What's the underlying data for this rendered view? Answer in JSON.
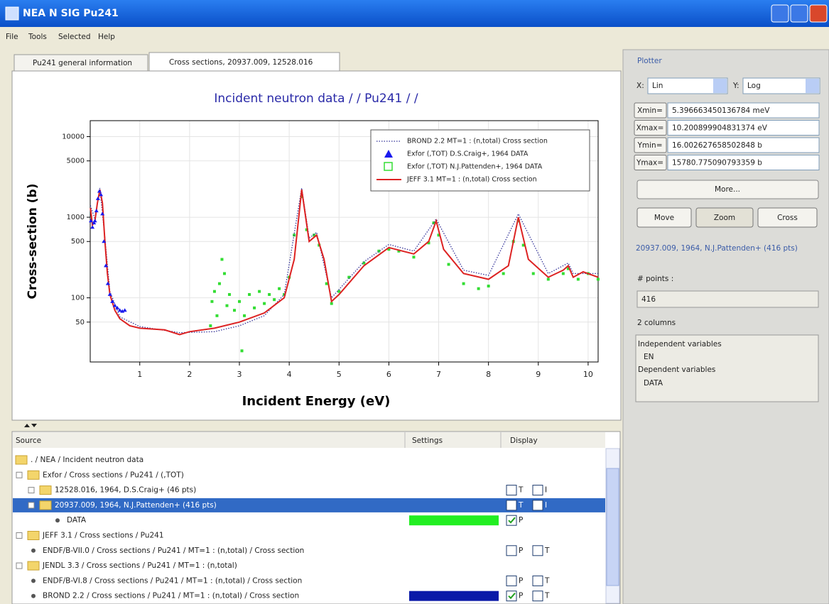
{
  "window": {
    "title": "NEA N SIG Pu241"
  },
  "menu": [
    "File",
    "Tools",
    "Selected",
    "Help"
  ],
  "tabs": [
    "Pu241 general information",
    "Cross sections, 20937.009, 12528.016"
  ],
  "chart_data": {
    "type": "line",
    "title": "Incident neutron data / / Pu241 / /",
    "x_label": "Incident Energy (eV)",
    "y_label": "Cross-section (b)",
    "xlim": [
      0.005396663450136784,
      10.200899904831374
    ],
    "ylim": [
      16.00262765850285,
      15780.775090793359
    ],
    "xticks": [
      1,
      2,
      3,
      4,
      5,
      6,
      7,
      8,
      9,
      10
    ],
    "yticks": [
      50,
      100,
      500,
      1000,
      5000,
      10000
    ],
    "log_y": true,
    "grid": true,
    "legend": "upper right",
    "series": [
      {
        "name": "BROND 2.2  MT=1 : (n,total) Cross section",
        "color": "#333399",
        "style": "dotted",
        "x": [
          0.01,
          0.1,
          0.2,
          0.3,
          0.4,
          0.6,
          1.0,
          1.8,
          2.5,
          3.0,
          3.5,
          3.9,
          4.25,
          4.4,
          4.55,
          4.85,
          5.5,
          6.0,
          6.5,
          6.95,
          7.5,
          8.0,
          8.6,
          9.2,
          9.6,
          9.7,
          10.2
        ],
        "values": [
          1400,
          950,
          2300,
          550,
          120,
          58,
          44,
          37,
          38,
          45,
          60,
          110,
          2300,
          550,
          650,
          100,
          280,
          460,
          380,
          950,
          220,
          190,
          1100,
          200,
          270,
          200,
          200
        ]
      },
      {
        "name": "Exfor (,TOT) D.S.Craig+, 1964 DATA",
        "color": "#1a1aee",
        "style": "triangle",
        "x": [
          0.02,
          0.05,
          0.08,
          0.1,
          0.13,
          0.16,
          0.19,
          0.22,
          0.25,
          0.28,
          0.32,
          0.36,
          0.4,
          0.45,
          0.5,
          0.55,
          0.6,
          0.65,
          0.7
        ],
        "values": [
          900,
          750,
          850,
          900,
          1200,
          1700,
          2100,
          1900,
          1100,
          500,
          250,
          150,
          110,
          90,
          80,
          75,
          70,
          68,
          70
        ]
      },
      {
        "name": "Exfor (,TOT) N.J.Pattenden+, 1964 DATA",
        "color": "#33dd33",
        "style": "square",
        "x": [
          2.42,
          2.45,
          2.5,
          2.55,
          2.6,
          2.65,
          2.7,
          2.75,
          2.8,
          2.9,
          3.0,
          3.05,
          3.1,
          3.2,
          3.3,
          3.4,
          3.5,
          3.6,
          3.7,
          3.8,
          3.9,
          4.0,
          4.1,
          4.25,
          4.35,
          4.5,
          4.6,
          4.75,
          4.85,
          5.0,
          5.2,
          5.5,
          5.8,
          6.0,
          6.2,
          6.5,
          6.8,
          6.9,
          7.0,
          7.2,
          7.5,
          7.8,
          8.0,
          8.3,
          8.5,
          8.6,
          8.7,
          8.9,
          9.2,
          9.5,
          9.6,
          9.8,
          10.0,
          10.2
        ],
        "values": [
          45,
          90,
          120,
          60,
          150,
          300,
          200,
          80,
          110,
          70,
          90,
          22,
          60,
          110,
          75,
          120,
          85,
          110,
          95,
          130,
          110,
          180,
          600,
          1800,
          700,
          600,
          450,
          150,
          85,
          120,
          180,
          270,
          380,
          400,
          380,
          320,
          480,
          850,
          600,
          260,
          150,
          130,
          140,
          200,
          500,
          900,
          450,
          200,
          170,
          200,
          230,
          170,
          200,
          170
        ]
      },
      {
        "name": "JEFF 3.1  MT=1 : (n,total) Cross section",
        "color": "#dd2222",
        "style": "solid",
        "x": [
          0.01,
          0.05,
          0.1,
          0.15,
          0.2,
          0.25,
          0.3,
          0.35,
          0.4,
          0.5,
          0.6,
          0.8,
          1.0,
          1.5,
          1.8,
          2.0,
          2.5,
          3.0,
          3.5,
          3.9,
          4.1,
          4.25,
          4.4,
          4.55,
          4.7,
          4.85,
          5.0,
          5.5,
          6.0,
          6.5,
          6.8,
          6.95,
          7.1,
          7.5,
          8.0,
          8.4,
          8.6,
          8.8,
          9.2,
          9.5,
          9.6,
          9.7,
          9.9,
          10.2
        ],
        "values": [
          1300,
          800,
          900,
          1500,
          2200,
          1500,
          500,
          200,
          110,
          70,
          55,
          45,
          42,
          40,
          35,
          38,
          42,
          50,
          65,
          100,
          300,
          2200,
          500,
          600,
          300,
          90,
          110,
          250,
          420,
          350,
          500,
          900,
          400,
          200,
          170,
          250,
          1000,
          300,
          180,
          220,
          250,
          180,
          210,
          180
        ]
      }
    ]
  },
  "plotter": {
    "title": "Plotter",
    "x_label": "X:",
    "x_scale": "Lin",
    "y_label": "Y:",
    "y_scale": "Log",
    "limits": [
      {
        "button": "Xmin=",
        "value": "5.396663450136784 meV"
      },
      {
        "button": "Xmax=",
        "value": "10.200899904831374 eV"
      },
      {
        "button": "Ymin=",
        "value": "16.002627658502848 b"
      },
      {
        "button": "Ymax=",
        "value": "15780.775090793359 b"
      }
    ],
    "more": "More...",
    "modes": [
      "Move",
      "Zoom",
      "Cross"
    ],
    "selection": "20937.009, 1964, N.J.Pattenden+ (416 pts)",
    "points_label": "# points :",
    "points": "416",
    "columns": "2 columns",
    "variables": [
      "Independent variables",
      "EN",
      "Dependent variables",
      "DATA"
    ]
  },
  "table": {
    "headers": [
      "Source",
      "Settings",
      "Display"
    ],
    "rows": [
      {
        "label": ". / NEA / Incident neutron data"
      },
      {
        "label": "Exfor / Cross sections / Pu241 / (,TOT)"
      },
      {
        "label": "12528.016, 1964, D.S.Craig+ (46 pts)",
        "display": [
          {
            "label": "T",
            "checked": false
          },
          {
            "label": "I",
            "checked": false
          }
        ]
      },
      {
        "label": "20937.009, 1964, N.J.Pattenden+ (416 pts)",
        "selected": true,
        "display": [
          {
            "label": "T",
            "checked": false
          },
          {
            "label": "I",
            "checked": false
          }
        ]
      },
      {
        "label": "DATA",
        "swatch": "#22ee22",
        "display": [
          {
            "label": "P",
            "checked": true
          }
        ]
      },
      {
        "label": "JEFF 3.1 / Cross sections / Pu241"
      },
      {
        "label": "ENDF/B-VII.0 / Cross sections / Pu241 / MT=1 : (n,total) / Cross section",
        "display": [
          {
            "label": "P",
            "checked": false
          },
          {
            "label": "T",
            "checked": false
          }
        ]
      },
      {
        "label": "JENDL 3.3 / Cross sections / Pu241 / MT=1 : (n,total)"
      },
      {
        "label": "ENDF/B-VI.8 / Cross sections / Pu241 / MT=1 : (n,total) / Cross section",
        "display": [
          {
            "label": "P",
            "checked": false
          },
          {
            "label": "T",
            "checked": false
          }
        ]
      },
      {
        "label": "BROND 2.2 / Cross sections / Pu241 / MT=1 : (n,total) / Cross section",
        "swatch": "#0a1aa8",
        "display": [
          {
            "label": "P",
            "checked": true
          },
          {
            "label": "T",
            "checked": false
          }
        ]
      }
    ]
  }
}
